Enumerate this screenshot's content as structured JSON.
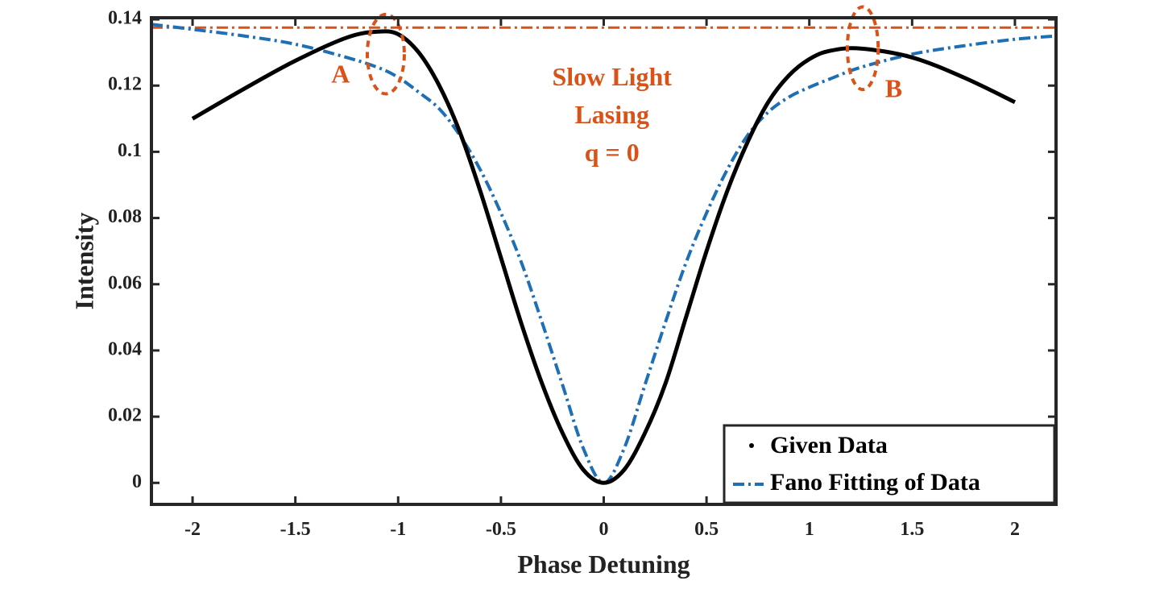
{
  "chart_data": {
    "type": "line",
    "title": "",
    "xlabel": "Phase Detuning",
    "ylabel": "Intensity",
    "xlim": [
      -2.2,
      2.2
    ],
    "ylim": [
      -0.0065,
      0.1405
    ],
    "xticks": [
      -2,
      -1.5,
      -1,
      -0.5,
      0,
      0.5,
      1,
      1.5,
      2
    ],
    "xtick_labels": [
      "-2",
      "-1.5",
      "-1",
      "-0.5",
      "0",
      "0.5",
      "1",
      "1.5",
      "2"
    ],
    "yticks": [
      0,
      0.02,
      0.04,
      0.06,
      0.08,
      0.1,
      0.12,
      0.14
    ],
    "ytick_labels": [
      "0",
      "0.02",
      "0.04",
      "0.06",
      "0.08",
      "0.1",
      "0.12",
      "0.14"
    ],
    "grid": false,
    "legend_position": "bottom-right",
    "legend": [
      {
        "label": "Given Data",
        "marker": "dot",
        "color": "#000000"
      },
      {
        "label": "Fano Fitting of Data",
        "style": "dash-dot",
        "color": "#1f6fb5"
      }
    ],
    "series": [
      {
        "name": "Given Data",
        "color": "#000000",
        "x": [
          -2.0,
          -1.75,
          -1.5,
          -1.25,
          -1.1,
          -1.0,
          -0.9,
          -0.8,
          -0.7,
          -0.6,
          -0.5,
          -0.4,
          -0.3,
          -0.2,
          -0.1,
          0.0,
          0.1,
          0.2,
          0.3,
          0.4,
          0.5,
          0.6,
          0.7,
          0.8,
          0.9,
          1.0,
          1.1,
          1.25,
          1.5,
          1.75,
          2.0
        ],
        "y": [
          0.11,
          0.119,
          0.1275,
          0.1345,
          0.1363,
          0.1355,
          0.13,
          0.12,
          0.106,
          0.088,
          0.068,
          0.048,
          0.03,
          0.015,
          0.004,
          0.0,
          0.004,
          0.015,
          0.03,
          0.05,
          0.07,
          0.088,
          0.103,
          0.115,
          0.123,
          0.128,
          0.1305,
          0.1312,
          0.1285,
          0.1225,
          0.115
        ]
      },
      {
        "name": "Fano Fitting of Data",
        "color": "#1f6fb5",
        "style": "dash-dot",
        "x": [
          -2.2,
          -2.0,
          -1.75,
          -1.5,
          -1.25,
          -1.1,
          -1.0,
          -0.9,
          -0.8,
          -0.7,
          -0.6,
          -0.5,
          -0.4,
          -0.3,
          -0.2,
          -0.1,
          0.0,
          0.1,
          0.2,
          0.3,
          0.4,
          0.5,
          0.6,
          0.7,
          0.8,
          0.9,
          1.0,
          1.1,
          1.25,
          1.5,
          1.75,
          2.0,
          2.2
        ],
        "y": [
          0.1385,
          0.137,
          0.135,
          0.1325,
          0.1285,
          0.1255,
          0.1225,
          0.118,
          0.113,
          0.105,
          0.0945,
          0.0815,
          0.0665,
          0.0485,
          0.0295,
          0.0105,
          0.0,
          0.0105,
          0.0295,
          0.0485,
          0.0665,
          0.0815,
          0.0945,
          0.105,
          0.112,
          0.1165,
          0.1195,
          0.122,
          0.1255,
          0.1295,
          0.132,
          0.134,
          0.135
        ]
      },
      {
        "name": "",
        "color": "#d95319",
        "style": "dash-dot",
        "x": [
          -2.2,
          2.2
        ],
        "y": [
          0.1375,
          0.1375
        ]
      }
    ],
    "annotations": [
      {
        "text": "Slow Light",
        "x": 0.04,
        "y": 0.1218
      },
      {
        "text": "Lasing",
        "x": 0.04,
        "y": 0.1104
      },
      {
        "text": "q = 0",
        "x": 0.04,
        "y": 0.099
      },
      {
        "text": "A",
        "x": -1.28,
        "y": 0.1227
      },
      {
        "text": "B",
        "x": 1.41,
        "y": 0.1183
      }
    ],
    "highlight_ellipses": [
      {
        "cx": -1.06,
        "cy": 0.1295,
        "rx": 0.09,
        "ry": 0.012,
        "color": "#d95319"
      },
      {
        "cx": 1.26,
        "cy": 0.1313,
        "rx": 0.075,
        "ry": 0.0125,
        "color": "#d95319"
      }
    ]
  }
}
